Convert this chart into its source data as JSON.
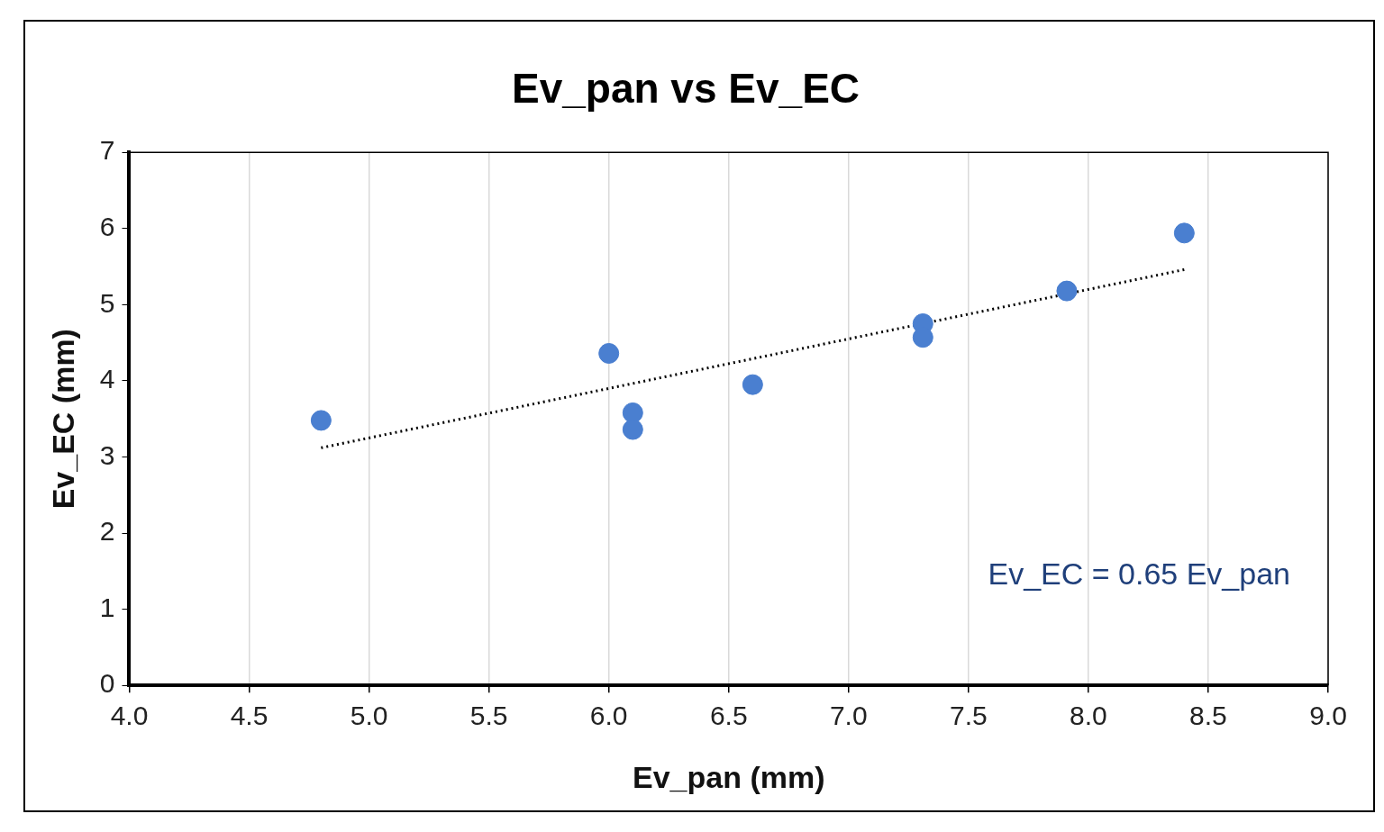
{
  "chart_data": {
    "type": "scatter",
    "title": "Ev_pan vs Ev_EC",
    "xlabel": "Ev_pan (mm)",
    "ylabel": "Ev_EC (mm)",
    "x": [
      4.8,
      6.0,
      6.1,
      6.1,
      6.6,
      7.31,
      7.31,
      7.91,
      8.4
    ],
    "series": [
      {
        "type": "scatter",
        "color": "#4a7fd0",
        "values": [
          3.48,
          4.36,
          3.58,
          3.36,
          3.95,
          4.75,
          4.57,
          5.18,
          5.94
        ],
        "marker": "circle"
      },
      {
        "type": "line",
        "color": "#000000",
        "x": [
          4.8,
          8.4
        ],
        "values": [
          3.12,
          5.46
        ],
        "marker": "none",
        "line_style": "dotted"
      }
    ],
    "xlim": [
      4,
      9
    ],
    "xticks": [
      {
        "value": 4,
        "label": "4.0"
      },
      {
        "value": 4.5,
        "label": "4.5"
      },
      {
        "value": 5,
        "label": "5.0"
      },
      {
        "value": 5.5,
        "label": "5.5"
      },
      {
        "value": 6,
        "label": "6.0"
      },
      {
        "value": 6.5,
        "label": "6.5"
      },
      {
        "value": 7,
        "label": "7.0"
      },
      {
        "value": 7.5,
        "label": "7.5"
      },
      {
        "value": 8,
        "label": "8.0"
      },
      {
        "value": 8.5,
        "label": "8.5"
      },
      {
        "value": 9,
        "label": "9.0"
      }
    ],
    "ylim": [
      0,
      7
    ],
    "yticks": [
      0,
      1,
      2,
      3,
      4,
      5,
      6,
      7
    ],
    "grid": "x",
    "legend": false,
    "annotations": [
      "Ev_EC = 0.65 Ev_pan"
    ]
  }
}
